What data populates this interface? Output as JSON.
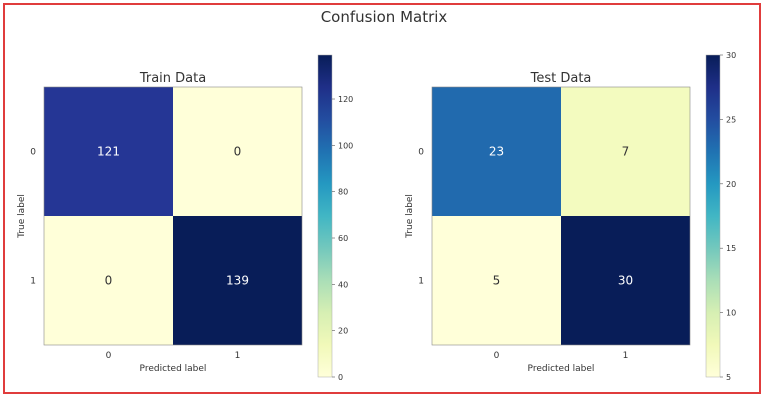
{
  "suptitle": "Confusion Matrix",
  "chart_data": [
    {
      "type": "heatmap",
      "title": "Train Data",
      "xlabel": "Predicted label",
      "ylabel": "True label",
      "x_tick_labels": [
        "0",
        "1"
      ],
      "y_tick_labels": [
        "0",
        "1"
      ],
      "matrix": [
        [
          121,
          0
        ],
        [
          0,
          139
        ]
      ],
      "colormap": "YlGnBu",
      "colorbar": {
        "min": 0,
        "max": 139,
        "ticks": [
          0,
          20,
          40,
          60,
          80,
          100,
          120
        ]
      }
    },
    {
      "type": "heatmap",
      "title": "Test Data",
      "xlabel": "Predicted label",
      "ylabel": "True label",
      "x_tick_labels": [
        "0",
        "1"
      ],
      "y_tick_labels": [
        "0",
        "1"
      ],
      "matrix": [
        [
          23,
          7
        ],
        [
          5,
          30
        ]
      ],
      "colormap": "YlGnBu",
      "colorbar": {
        "min": 5,
        "max": 30,
        "ticks": [
          5,
          10,
          15,
          20,
          25,
          30
        ]
      }
    }
  ]
}
